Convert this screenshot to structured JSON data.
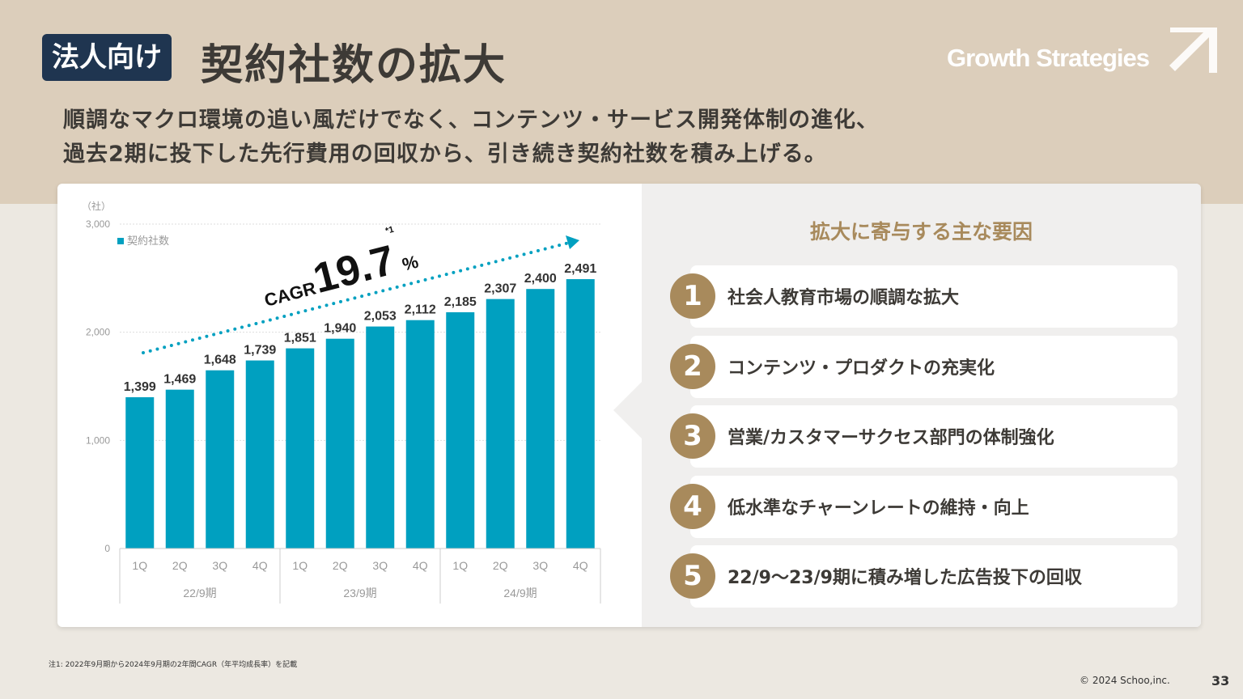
{
  "header": {
    "badge": "法人向け",
    "title": "契約社数の拡大",
    "section": "Growth Strategies",
    "subtitle_lines": [
      "順調なマクロ環境の追い風だけでなく、コンテンツ・サービス開発体制の進化、",
      "過去2期に投下した先行費用の回収から、引き続き契約社数を積み上げる。"
    ]
  },
  "chart_data": {
    "type": "bar",
    "unit_label": "（社）",
    "legend": "契約社数",
    "categories": [
      "1Q",
      "2Q",
      "3Q",
      "4Q",
      "1Q",
      "2Q",
      "3Q",
      "4Q",
      "1Q",
      "2Q",
      "3Q",
      "4Q"
    ],
    "groups": [
      "22/9期",
      "23/9期",
      "24/9期"
    ],
    "values": [
      1399,
      1469,
      1648,
      1739,
      1851,
      1940,
      2053,
      2112,
      2185,
      2307,
      2400,
      2491
    ],
    "value_labels": [
      "1,399",
      "1,469",
      "1,648",
      "1,739",
      "1,851",
      "1,940",
      "2,053",
      "2,112",
      "2,185",
      "2,307",
      "2,400",
      "2,491"
    ],
    "yticks": [
      "0",
      "1,000",
      "2,000",
      "3,000"
    ],
    "ylim": [
      0,
      3000
    ],
    "grid": true,
    "legend_position": "top-left",
    "annotation": {
      "prefix": "CAGR",
      "value": "19.7",
      "suffix": "%",
      "note_mark": "*1"
    },
    "bar_color": "#00a0c0"
  },
  "factors": {
    "title": "拡大に寄与する主な要因",
    "items": [
      {
        "n": "1",
        "text": "社会人教育市場の順調な拡大"
      },
      {
        "n": "2",
        "text": "コンテンツ・プロダクトの充実化"
      },
      {
        "n": "3",
        "text": "営業/カスタマーサクセス部門の体制強化"
      },
      {
        "n": "4",
        "text": "低水準なチャーンレートの維持・向上"
      },
      {
        "n": "5",
        "text": "22/9～23/9期に積み増した広告投下の回収"
      }
    ]
  },
  "footer": {
    "note": "注1: 2022年9月期から2024年9月期の2年間CAGR（年平均成長率）を記載",
    "copyright": "© 2024 Schoo,inc.",
    "page": "33"
  }
}
